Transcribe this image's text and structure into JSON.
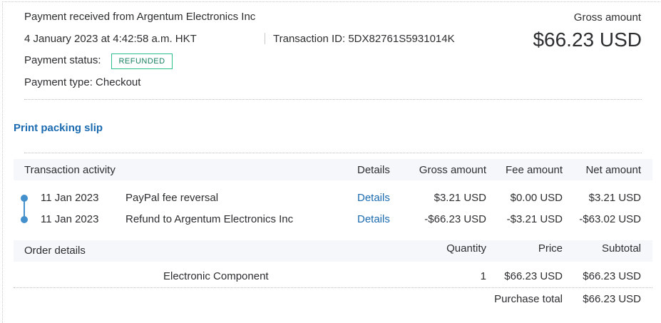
{
  "summary": {
    "title": "Payment received from Argentum Electronics Inc",
    "datetime": "4 January 2023 at 4:42:58 a.m. HKT",
    "transaction_id": "Transaction ID: 5DX82761S5931014K",
    "status_label": "Payment status:",
    "status": "REFUNDED",
    "status_color": "#2cbf8a",
    "payment_type": "Payment type: Checkout",
    "gross_label": "Gross amount",
    "gross_amount": "$66.23 USD"
  },
  "print_link": "Print packing slip",
  "activity": {
    "headers": [
      "Transaction activity",
      "Details",
      "Gross amount",
      "Fee amount",
      "Net amount"
    ],
    "rows": [
      {
        "date": "11 Jan 2023",
        "description": "PayPal fee reversal",
        "details": "Details",
        "gross": "$3.21 USD",
        "fee": "$0.00 USD",
        "net": "$3.21 USD"
      },
      {
        "date": "11 Jan 2023",
        "description": "Refund to Argentum Electronics Inc",
        "details": "Details",
        "gross": "-$66.23 USD",
        "fee": "-$3.21 USD",
        "net": "-$63.02 USD"
      }
    ]
  },
  "order": {
    "headers": [
      "Order details",
      "Quantity",
      "Price",
      "Subtotal"
    ],
    "items": [
      {
        "name": "Electronic Component",
        "quantity": "1",
        "price": "$66.23 USD",
        "subtotal": "$66.23 USD"
      }
    ],
    "total_label": "Purchase total",
    "total": "$66.23 USD"
  },
  "colors": {
    "link": "#1a6ab0",
    "timeline": "#4390cd",
    "band": "#f5f7fa"
  }
}
